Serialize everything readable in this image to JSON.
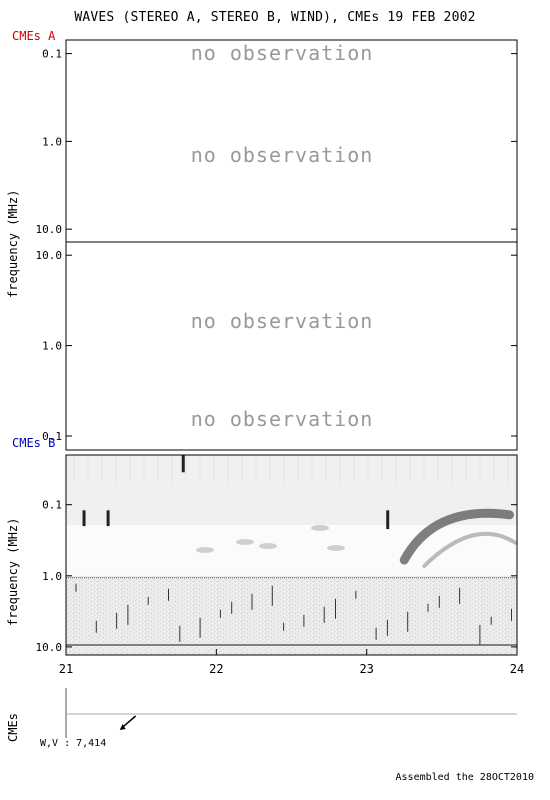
{
  "header": {
    "title": "WAVES (STEREO A, STEREO B, WIND), CMEs  19 FEB 2002",
    "cmes_a_label": "CMEs A",
    "cmes_b_label": "CMEs B"
  },
  "footer": {
    "assembled": "Assembled the 28OCT2010"
  },
  "cme_panel": {
    "ylabel": "CMEs",
    "wv_label": "W,V :  7,414"
  },
  "colors": {
    "cmes_a": "#cc0000",
    "cmes_b": "#0000bb",
    "no_obs": "#999999",
    "axis": "#000000"
  },
  "chart_data": [
    {
      "panel": "STEREO A",
      "type": "heatmap",
      "ylabel": "frequency (MHz)",
      "yscale": "log",
      "y_ticks": [
        "0.1",
        "1.0",
        "10.0"
      ],
      "ylim": [
        0.07,
        14.0
      ],
      "annotations": [
        "no observation",
        "no observation"
      ]
    },
    {
      "panel": "STEREO B",
      "type": "heatmap",
      "ylabel": "",
      "yscale": "log",
      "y_ticks": [
        "10.0",
        "1.0",
        "0.1"
      ],
      "ylim": [
        14.0,
        0.07
      ],
      "annotations": [
        "no observation",
        "no observation"
      ]
    },
    {
      "panel": "WIND",
      "type": "heatmap",
      "ylabel": "frequency (MHz)",
      "yscale": "log",
      "y_ticks": [
        "0.1",
        "1.0",
        "10.0"
      ],
      "ylim": [
        0.02,
        13.0
      ],
      "x_ticks": [
        "21",
        "22",
        "23",
        "24"
      ],
      "xlim": [
        21,
        24
      ],
      "features": [
        {
          "name": "type III burst",
          "x": 21.78,
          "f_low": 0.02,
          "f_high": 0.035
        },
        {
          "name": "type III burst",
          "x": 21.12,
          "f_low": 0.12,
          "f_high": 0.2
        },
        {
          "name": "type III burst",
          "x": 21.28,
          "f_low": 0.12,
          "f_high": 0.2
        },
        {
          "name": "type III burst",
          "x": 23.14,
          "f_low": 0.12,
          "f_high": 0.22
        },
        {
          "name": "type II drift",
          "x_start": 23.25,
          "x_end": 23.95,
          "f_start": 0.6,
          "f_end": 0.13
        }
      ]
    },
    {
      "panel": "CMEs",
      "type": "scatter",
      "xlim": [
        21,
        24
      ],
      "points": [
        {
          "x": 21.45,
          "label": "W,V :  7,414"
        }
      ]
    }
  ]
}
